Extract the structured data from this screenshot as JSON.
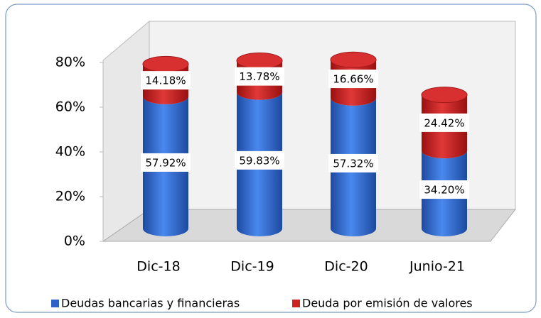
{
  "chart_data": {
    "type": "bar",
    "stacked": true,
    "three_d": true,
    "categories": [
      "Dic-18",
      "Dic-19",
      "Dic-20",
      "Junio-21"
    ],
    "series": [
      {
        "name": "Deudas bancarias y financieras",
        "color": "#2e64c8",
        "values": [
          57.92,
          59.83,
          57.32,
          34.2
        ],
        "value_labels": [
          "57.92%",
          "59.83%",
          "57.32%",
          "34.20%"
        ]
      },
      {
        "name": "Deuda por emisión de valores",
        "color": "#cc2222",
        "values": [
          14.18,
          13.78,
          16.66,
          24.42
        ],
        "value_labels": [
          "14.18%",
          "13.78%",
          "16.66%",
          "24.42%"
        ]
      }
    ],
    "ylim": [
      0,
      80
    ],
    "yticks": [
      {
        "value": 0,
        "label": "0%"
      },
      {
        "value": 20,
        "label": "20%"
      },
      {
        "value": 40,
        "label": "40%"
      },
      {
        "value": 60,
        "label": "60%"
      },
      {
        "value": 80,
        "label": "80%"
      }
    ],
    "legend": "bottom"
  }
}
